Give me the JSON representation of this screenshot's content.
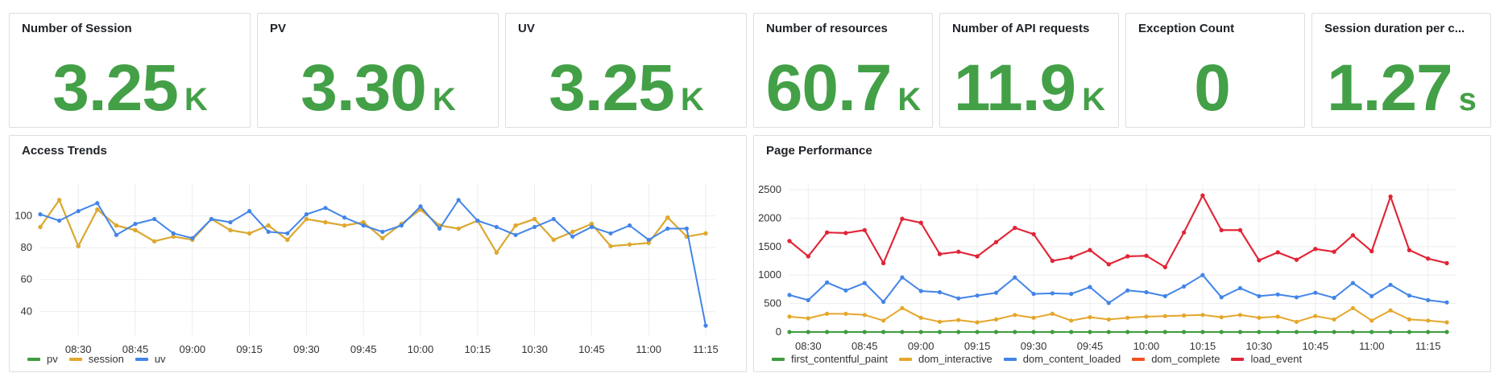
{
  "stats": [
    {
      "title": "Number of Session",
      "value": "3.25",
      "unit": "K"
    },
    {
      "title": "PV",
      "value": "3.30",
      "unit": "K"
    },
    {
      "title": "UV",
      "value": "3.25",
      "unit": "K"
    },
    {
      "title": "Number of resources",
      "value": "60.7",
      "unit": "K"
    },
    {
      "title": "Number of API requests",
      "value": "11.9",
      "unit": "K"
    },
    {
      "title": "Exception Count",
      "value": "0",
      "unit": ""
    },
    {
      "title": "Session duration per c...",
      "value": "1.27",
      "unit": "s"
    }
  ],
  "colors": {
    "accent": "#43a047",
    "pv": "#3e9c3e",
    "session": "#e5a72a",
    "uv": "#4285e8",
    "first_contentful_paint": "#3e9c3e",
    "dom_interactive": "#e5a72a",
    "dom_content_loaded": "#4285e8",
    "dom_complete": "#f4511e",
    "load_event": "#e0243a"
  },
  "access_trends": {
    "title": "Access Trends"
  },
  "page_performance": {
    "title": "Page Performance"
  },
  "chart_data": [
    {
      "type": "line",
      "title": "Access Trends",
      "x_labels": [
        "08:30",
        "08:45",
        "09:00",
        "09:15",
        "09:30",
        "09:45",
        "10:00",
        "10:15",
        "10:30",
        "10:45",
        "11:00",
        "11:15"
      ],
      "ylim": [
        25,
        120
      ],
      "y_ticks": [
        40,
        60,
        80,
        100
      ],
      "grid": true,
      "legend_position": "bottom-left",
      "series": [
        {
          "name": "pv",
          "color": "#3e9c3e",
          "values": [
            93,
            110,
            81,
            104,
            94,
            91,
            84,
            87,
            85,
            98,
            91,
            89,
            94,
            85,
            98,
            96,
            94,
            96,
            86,
            95,
            104,
            94,
            92,
            97,
            77,
            94,
            98,
            85,
            90,
            95,
            81,
            82,
            83,
            99,
            87,
            89
          ]
        },
        {
          "name": "session",
          "color": "#e5a72a",
          "values": [
            93,
            110,
            81,
            104,
            94,
            91,
            84,
            87,
            85,
            98,
            91,
            89,
            94,
            85,
            98,
            96,
            94,
            96,
            86,
            95,
            104,
            94,
            92,
            97,
            77,
            94,
            98,
            85,
            90,
            95,
            81,
            82,
            83,
            99,
            87,
            89
          ]
        },
        {
          "name": "uv",
          "color": "#4285e8",
          "values": [
            101,
            97,
            103,
            108,
            88,
            95,
            98,
            89,
            86,
            98,
            96,
            103,
            90,
            89,
            101,
            105,
            99,
            94,
            90,
            94,
            106,
            92,
            110,
            97,
            93,
            88,
            93,
            98,
            87,
            93,
            89,
            94,
            85,
            92,
            92,
            31
          ]
        }
      ]
    },
    {
      "type": "line",
      "title": "Page Performance",
      "x_labels": [
        "08:30",
        "08:45",
        "09:00",
        "09:15",
        "09:30",
        "09:45",
        "10:00",
        "10:15",
        "10:30",
        "10:45",
        "11:00",
        "11:15"
      ],
      "ylim": [
        0,
        2600
      ],
      "y_ticks": [
        0,
        500,
        1000,
        1500,
        2000,
        2500
      ],
      "grid": true,
      "legend_position": "bottom-left",
      "series": [
        {
          "name": "first_contentful_paint",
          "color": "#3e9c3e",
          "values": [
            0,
            0,
            0,
            0,
            0,
            0,
            0,
            0,
            0,
            0,
            0,
            0,
            0,
            0,
            0,
            0,
            0,
            0,
            0,
            0,
            0,
            0,
            0,
            0,
            0,
            0,
            0,
            0,
            0,
            0,
            0,
            0,
            0,
            0,
            0,
            0
          ]
        },
        {
          "name": "dom_interactive",
          "color": "#e5a72a",
          "values": [
            270,
            240,
            320,
            320,
            300,
            200,
            420,
            250,
            180,
            210,
            170,
            220,
            300,
            250,
            320,
            200,
            260,
            220,
            250,
            270,
            280,
            290,
            300,
            260,
            300,
            250,
            270,
            180,
            280,
            220,
            420,
            200,
            380,
            220,
            200,
            170
          ]
        },
        {
          "name": "dom_content_loaded",
          "color": "#4285e8",
          "values": [
            650,
            560,
            870,
            730,
            860,
            530,
            960,
            720,
            700,
            590,
            640,
            690,
            960,
            670,
            680,
            670,
            790,
            510,
            730,
            700,
            630,
            800,
            1000,
            610,
            770,
            630,
            660,
            610,
            690,
            600,
            860,
            630,
            830,
            640,
            560,
            520
          ]
        },
        {
          "name": "dom_complete",
          "color": "#f4511e",
          "values": [
            1600,
            1330,
            1750,
            1740,
            1790,
            1210,
            1990,
            1920,
            1370,
            1410,
            1330,
            1580,
            1830,
            1720,
            1250,
            1310,
            1440,
            1190,
            1330,
            1340,
            1140,
            1750,
            2400,
            1790,
            1790,
            1260,
            1400,
            1270,
            1460,
            1410,
            1700,
            1420,
            2380,
            1440,
            1290,
            1210
          ]
        },
        {
          "name": "load_event",
          "color": "#e0243a",
          "values": [
            1600,
            1330,
            1750,
            1740,
            1790,
            1210,
            1990,
            1920,
            1370,
            1410,
            1330,
            1580,
            1830,
            1720,
            1250,
            1310,
            1440,
            1190,
            1330,
            1340,
            1140,
            1750,
            2400,
            1790,
            1790,
            1260,
            1400,
            1270,
            1460,
            1410,
            1700,
            1420,
            2380,
            1440,
            1290,
            1210
          ]
        }
      ]
    }
  ]
}
